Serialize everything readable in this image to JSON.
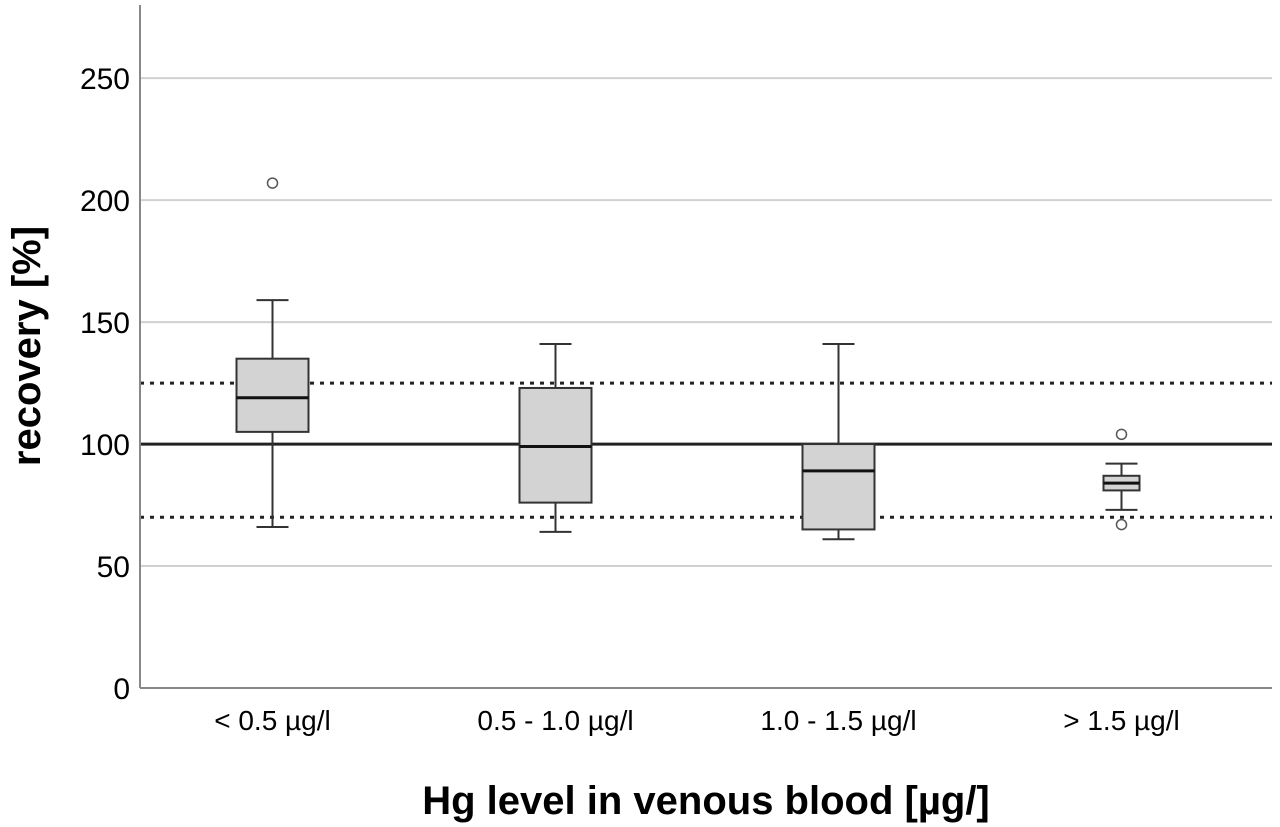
{
  "chart_data": {
    "type": "box",
    "xlabel": "Hg level in venous blood [µg/]",
    "ylabel": "recovery [%]",
    "ylim": [
      0,
      280
    ],
    "yticks": [
      0,
      50,
      100,
      150,
      200,
      250
    ],
    "grid": true,
    "categories": [
      "< 0.5 µg/l",
      "0.5 - 1.0 µg/l",
      "1.0 - 1.5 µg/l",
      "> 1.5 µg/l"
    ],
    "boxes": [
      {
        "whisker_low": 66,
        "q1": 105,
        "median": 119,
        "q3": 135,
        "whisker_high": 159,
        "outliers": [
          207
        ]
      },
      {
        "whisker_low": 64,
        "q1": 76,
        "median": 99,
        "q3": 123,
        "whisker_high": 141,
        "outliers": []
      },
      {
        "whisker_low": 61,
        "q1": 65,
        "median": 89,
        "q3": 100,
        "whisker_high": 141,
        "outliers": []
      },
      {
        "whisker_low": 73,
        "q1": 81,
        "median": 84,
        "q3": 87,
        "whisker_high": 92,
        "outliers": [
          104,
          67
        ]
      }
    ],
    "reference_lines": [
      {
        "value": 100,
        "style": "solid"
      },
      {
        "value": 125,
        "style": "dotted"
      },
      {
        "value": 70,
        "style": "dotted"
      }
    ],
    "colors": {
      "box_fill": "#d3d3d3",
      "box_stroke": "#333333",
      "grid": "#d0d0d0",
      "axis": "#888888"
    }
  }
}
